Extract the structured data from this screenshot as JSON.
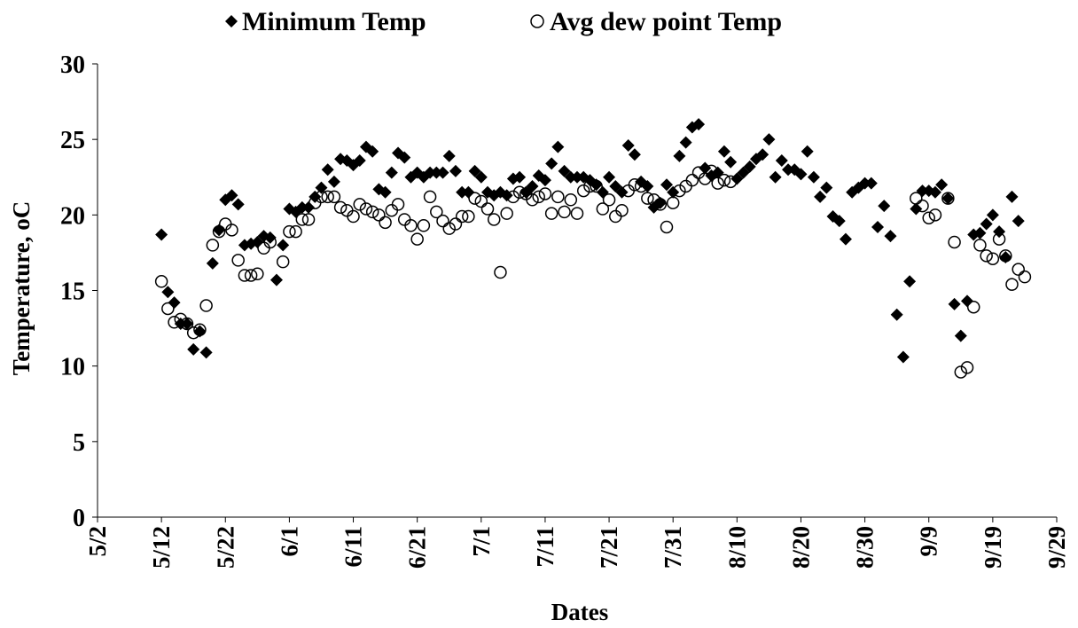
{
  "chart_data": {
    "type": "scatter",
    "title": "",
    "xlabel": "Dates",
    "ylabel": "Temperature, oC",
    "ylim": [
      0,
      30
    ],
    "yticks": [
      "0",
      "5",
      "10",
      "15",
      "20",
      "25",
      "30"
    ],
    "xlim": [
      "5/2",
      "9/29"
    ],
    "xticks": [
      "5/2",
      "5/12",
      "5/22",
      "6/1",
      "6/11",
      "6/21",
      "7/1",
      "7/11",
      "7/21",
      "7/31",
      "8/10",
      "8/20",
      "8/30",
      "9/9",
      "9/19",
      "9/29"
    ],
    "grid": false,
    "legend": "top",
    "series": [
      {
        "name": "Minimum Temp",
        "marker": "diamond",
        "color": "#000000",
        "points": [
          [
            "5/12",
            18.7
          ],
          [
            "5/13",
            14.9
          ],
          [
            "5/14",
            14.2
          ],
          [
            "5/15",
            12.8
          ],
          [
            "5/16",
            12.8
          ],
          [
            "5/17",
            11.1
          ],
          [
            "5/18",
            12.3
          ],
          [
            "5/19",
            10.9
          ],
          [
            "5/20",
            16.8
          ],
          [
            "5/21",
            19.0
          ],
          [
            "5/22",
            21.0
          ],
          [
            "5/23",
            21.3
          ],
          [
            "5/24",
            20.7
          ],
          [
            "5/25",
            18.0
          ],
          [
            "5/26",
            18.1
          ],
          [
            "5/27",
            18.2
          ],
          [
            "5/28",
            18.6
          ],
          [
            "5/29",
            18.5
          ],
          [
            "5/30",
            15.7
          ],
          [
            "5/31",
            18.0
          ],
          [
            "6/1",
            20.4
          ],
          [
            "6/2",
            20.2
          ],
          [
            "6/3",
            20.5
          ],
          [
            "6/4",
            20.5
          ],
          [
            "6/5",
            21.2
          ],
          [
            "6/6",
            21.8
          ],
          [
            "6/7",
            23.0
          ],
          [
            "6/8",
            22.2
          ],
          [
            "6/9",
            23.7
          ],
          [
            "6/10",
            23.6
          ],
          [
            "6/11",
            23.3
          ],
          [
            "6/12",
            23.6
          ],
          [
            "6/13",
            24.5
          ],
          [
            "6/14",
            24.2
          ],
          [
            "6/15",
            21.7
          ],
          [
            "6/16",
            21.5
          ],
          [
            "6/17",
            22.8
          ],
          [
            "6/18",
            24.1
          ],
          [
            "6/19",
            23.8
          ],
          [
            "6/20",
            22.5
          ],
          [
            "6/21",
            22.8
          ],
          [
            "6/22",
            22.5
          ],
          [
            "6/23",
            22.8
          ],
          [
            "6/24",
            22.8
          ],
          [
            "6/25",
            22.8
          ],
          [
            "6/26",
            23.9
          ],
          [
            "6/27",
            22.9
          ],
          [
            "6/28",
            21.5
          ],
          [
            "6/29",
            21.5
          ],
          [
            "6/30",
            22.9
          ],
          [
            "7/1",
            22.5
          ],
          [
            "7/2",
            21.5
          ],
          [
            "7/3",
            21.3
          ],
          [
            "7/4",
            21.5
          ],
          [
            "7/5",
            21.3
          ],
          [
            "7/6",
            22.4
          ],
          [
            "7/7",
            22.5
          ],
          [
            "7/8",
            21.5
          ],
          [
            "7/9",
            21.9
          ],
          [
            "7/10",
            22.6
          ],
          [
            "7/11",
            22.3
          ],
          [
            "7/12",
            23.4
          ],
          [
            "7/13",
            24.5
          ],
          [
            "7/14",
            22.9
          ],
          [
            "7/15",
            22.5
          ],
          [
            "7/16",
            22.5
          ],
          [
            "7/17",
            22.5
          ],
          [
            "7/18",
            22.3
          ],
          [
            "7/19",
            22.0
          ],
          [
            "7/20",
            21.5
          ],
          [
            "7/21",
            22.5
          ],
          [
            "7/22",
            21.9
          ],
          [
            "7/23",
            21.5
          ],
          [
            "7/24",
            24.6
          ],
          [
            "7/25",
            24.0
          ],
          [
            "7/26",
            22.2
          ],
          [
            "7/27",
            21.9
          ],
          [
            "7/28",
            20.5
          ],
          [
            "7/29",
            20.8
          ],
          [
            "7/30",
            22.0
          ],
          [
            "7/31",
            21.5
          ],
          [
            "8/1",
            23.9
          ],
          [
            "8/2",
            24.8
          ],
          [
            "8/3",
            25.8
          ],
          [
            "8/4",
            26.0
          ],
          [
            "8/5",
            23.1
          ],
          [
            "8/6",
            22.6
          ],
          [
            "8/7",
            22.8
          ],
          [
            "8/8",
            24.2
          ],
          [
            "8/9",
            23.5
          ],
          [
            "8/10",
            22.4
          ],
          [
            "8/11",
            22.8
          ],
          [
            "8/12",
            23.2
          ],
          [
            "8/13",
            23.7
          ],
          [
            "8/14",
            24.0
          ],
          [
            "8/15",
            25.0
          ],
          [
            "8/16",
            22.5
          ],
          [
            "8/17",
            23.6
          ],
          [
            "8/18",
            23.0
          ],
          [
            "8/19",
            23.0
          ],
          [
            "8/20",
            22.7
          ],
          [
            "8/21",
            24.2
          ],
          [
            "8/22",
            22.5
          ],
          [
            "8/23",
            21.2
          ],
          [
            "8/24",
            21.8
          ],
          [
            "8/25",
            19.9
          ],
          [
            "8/26",
            19.6
          ],
          [
            "8/27",
            18.4
          ],
          [
            "8/28",
            21.5
          ],
          [
            "8/29",
            21.8
          ],
          [
            "8/30",
            22.1
          ],
          [
            "8/31",
            22.1
          ],
          [
            "9/1",
            19.2
          ],
          [
            "9/2",
            20.6
          ],
          [
            "9/3",
            18.6
          ],
          [
            "9/4",
            13.4
          ],
          [
            "9/5",
            10.6
          ],
          [
            "9/6",
            15.6
          ],
          [
            "9/7",
            20.4
          ],
          [
            "9/8",
            21.6
          ],
          [
            "9/9",
            21.6
          ],
          [
            "9/10",
            21.5
          ],
          [
            "9/11",
            22.0
          ],
          [
            "9/12",
            21.1
          ],
          [
            "9/13",
            14.1
          ],
          [
            "9/14",
            12.0
          ],
          [
            "9/15",
            14.3
          ],
          [
            "9/16",
            18.7
          ],
          [
            "9/17",
            18.8
          ],
          [
            "9/18",
            19.4
          ],
          [
            "9/19",
            20.0
          ],
          [
            "9/20",
            18.9
          ],
          [
            "9/21",
            17.2
          ],
          [
            "9/22",
            21.2
          ],
          [
            "9/23",
            19.6
          ]
        ]
      },
      {
        "name": "Avg dew point Temp",
        "marker": "circle-open",
        "color": "#000000",
        "points": [
          [
            "5/12",
            15.6
          ],
          [
            "5/13",
            13.8
          ],
          [
            "5/14",
            12.9
          ],
          [
            "5/15",
            13.1
          ],
          [
            "5/16",
            12.8
          ],
          [
            "5/17",
            12.2
          ],
          [
            "5/18",
            12.4
          ],
          [
            "5/19",
            14.0
          ],
          [
            "5/20",
            18.0
          ],
          [
            "5/21",
            18.9
          ],
          [
            "5/22",
            19.4
          ],
          [
            "5/23",
            19.0
          ],
          [
            "5/24",
            17.0
          ],
          [
            "5/25",
            16.0
          ],
          [
            "5/26",
            16.0
          ],
          [
            "5/27",
            16.1
          ],
          [
            "5/28",
            17.8
          ],
          [
            "5/29",
            18.2
          ],
          [
            "5/31",
            16.9
          ],
          [
            "6/1",
            18.9
          ],
          [
            "6/2",
            18.9
          ],
          [
            "6/3",
            19.7
          ],
          [
            "6/4",
            19.7
          ],
          [
            "6/5",
            20.8
          ],
          [
            "6/6",
            21.2
          ],
          [
            "6/7",
            21.2
          ],
          [
            "6/8",
            21.2
          ],
          [
            "6/9",
            20.5
          ],
          [
            "6/10",
            20.3
          ],
          [
            "6/11",
            19.9
          ],
          [
            "6/12",
            20.7
          ],
          [
            "6/13",
            20.4
          ],
          [
            "6/14",
            20.2
          ],
          [
            "6/15",
            20.0
          ],
          [
            "6/16",
            19.5
          ],
          [
            "6/17",
            20.3
          ],
          [
            "6/18",
            20.7
          ],
          [
            "6/19",
            19.7
          ],
          [
            "6/20",
            19.3
          ],
          [
            "6/21",
            18.4
          ],
          [
            "6/22",
            19.3
          ],
          [
            "6/23",
            21.2
          ],
          [
            "6/24",
            20.2
          ],
          [
            "6/25",
            19.6
          ],
          [
            "6/26",
            19.1
          ],
          [
            "6/27",
            19.4
          ],
          [
            "6/28",
            19.9
          ],
          [
            "6/29",
            19.9
          ],
          [
            "6/30",
            21.1
          ],
          [
            "7/1",
            20.9
          ],
          [
            "7/2",
            20.4
          ],
          [
            "7/3",
            19.7
          ],
          [
            "7/4",
            16.2
          ],
          [
            "7/5",
            20.1
          ],
          [
            "7/6",
            21.2
          ],
          [
            "7/7",
            21.5
          ],
          [
            "7/8",
            21.4
          ],
          [
            "7/9",
            21.0
          ],
          [
            "7/10",
            21.2
          ],
          [
            "7/11",
            21.4
          ],
          [
            "7/12",
            20.1
          ],
          [
            "7/13",
            21.2
          ],
          [
            "7/14",
            20.2
          ],
          [
            "7/15",
            21.0
          ],
          [
            "7/16",
            20.1
          ],
          [
            "7/17",
            21.6
          ],
          [
            "7/18",
            21.9
          ],
          [
            "7/19",
            21.9
          ],
          [
            "7/20",
            20.4
          ],
          [
            "7/21",
            21.0
          ],
          [
            "7/22",
            19.9
          ],
          [
            "7/23",
            20.3
          ],
          [
            "7/24",
            21.6
          ],
          [
            "7/25",
            22.0
          ],
          [
            "7/26",
            21.9
          ],
          [
            "7/27",
            21.1
          ],
          [
            "7/28",
            21.0
          ],
          [
            "7/29",
            20.7
          ],
          [
            "7/30",
            19.2
          ],
          [
            "7/31",
            20.8
          ],
          [
            "8/1",
            21.6
          ],
          [
            "8/2",
            21.9
          ],
          [
            "8/3",
            22.3
          ],
          [
            "8/4",
            22.8
          ],
          [
            "8/5",
            22.4
          ],
          [
            "8/6",
            22.9
          ],
          [
            "8/7",
            22.1
          ],
          [
            "8/8",
            22.3
          ],
          [
            "8/9",
            22.2
          ],
          [
            "9/7",
            21.1
          ],
          [
            "9/8",
            20.6
          ],
          [
            "9/9",
            19.8
          ],
          [
            "9/10",
            20.0
          ],
          [
            "9/12",
            21.1
          ],
          [
            "9/13",
            18.2
          ],
          [
            "9/14",
            9.6
          ],
          [
            "9/15",
            9.9
          ],
          [
            "9/16",
            13.9
          ],
          [
            "9/17",
            18.0
          ],
          [
            "9/18",
            17.3
          ],
          [
            "9/19",
            17.1
          ],
          [
            "9/20",
            18.4
          ],
          [
            "9/21",
            17.3
          ],
          [
            "9/22",
            15.4
          ],
          [
            "9/23",
            16.4
          ],
          [
            "9/24",
            15.9
          ]
        ]
      }
    ]
  }
}
